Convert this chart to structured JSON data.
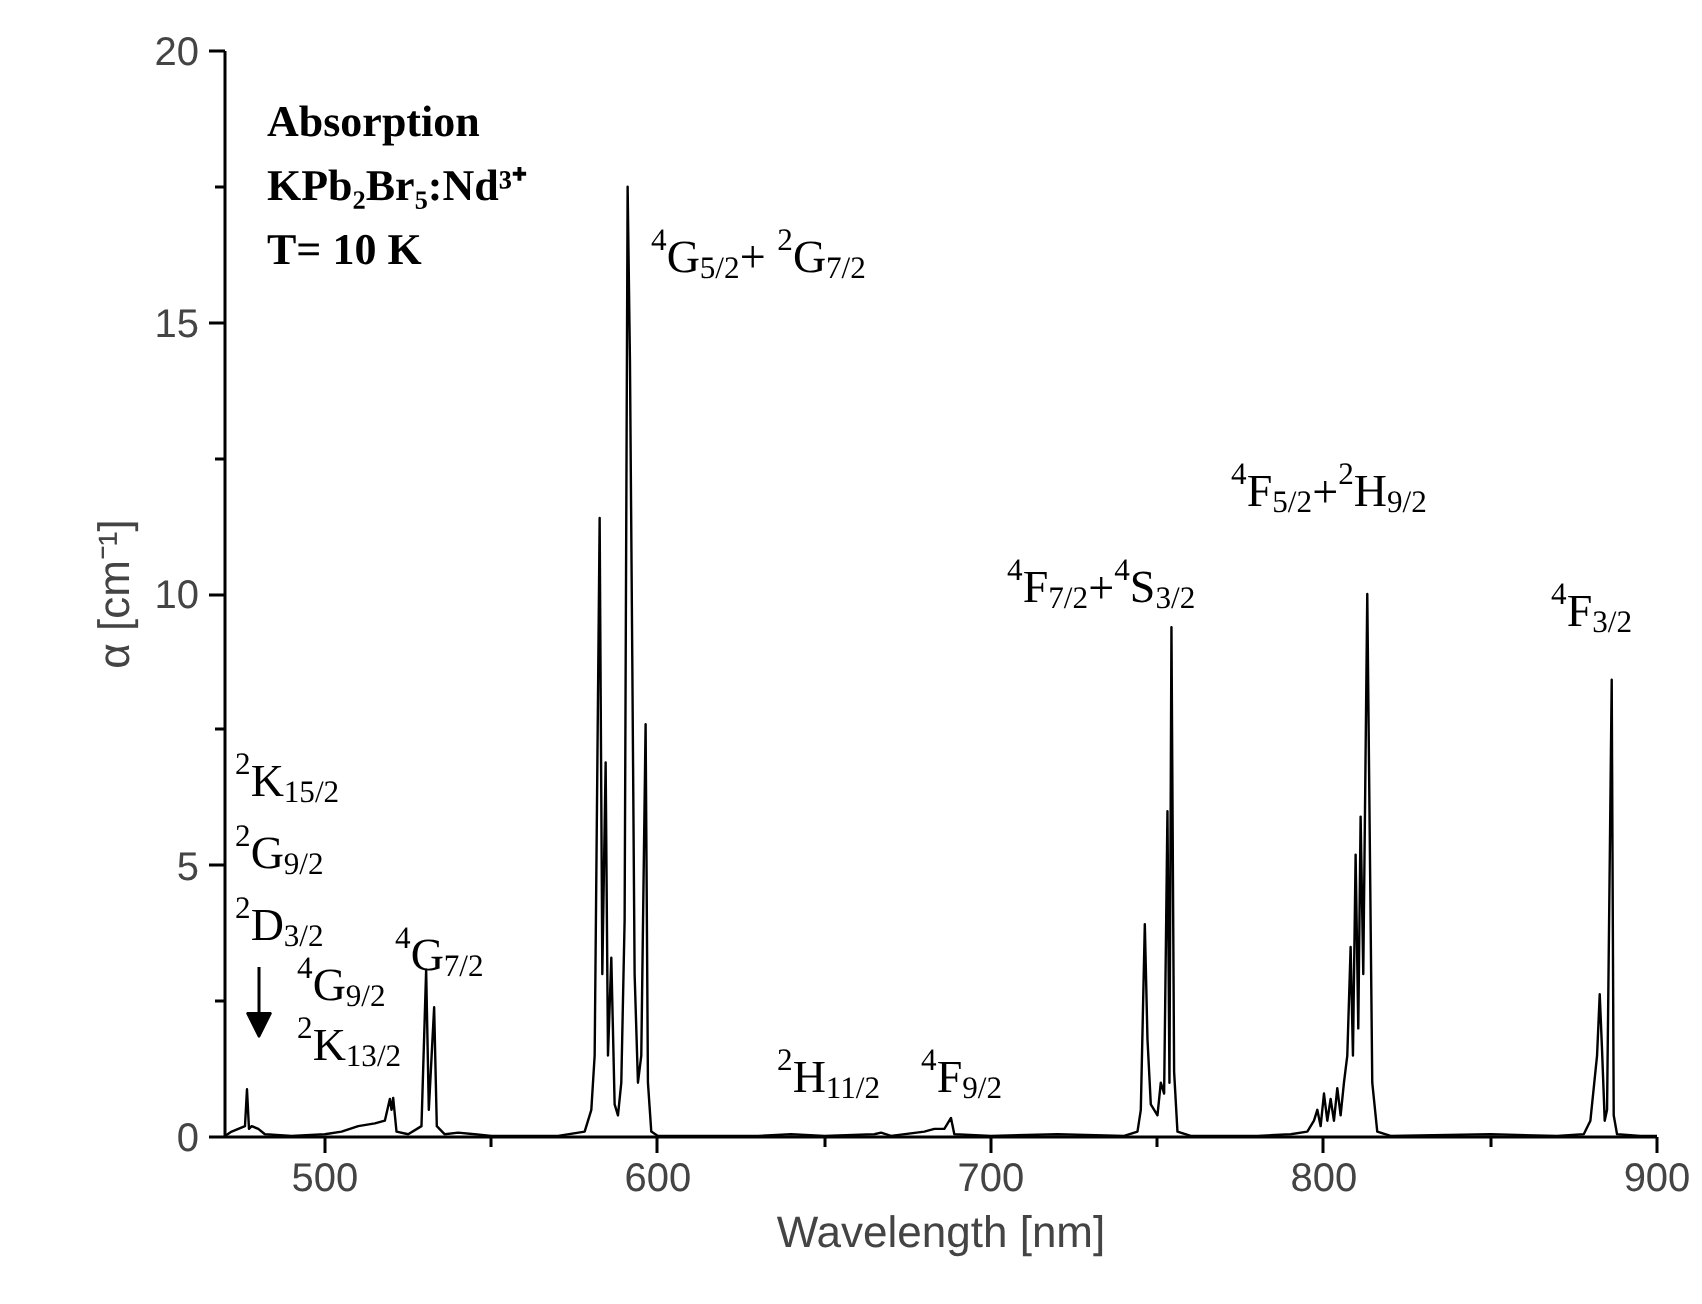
{
  "chart_data": {
    "type": "line",
    "xlabel": "Wavelength [nm]",
    "ylabel": "α [cm⁻¹]",
    "xlim": [
      470,
      900
    ],
    "ylim": [
      0,
      20
    ],
    "xticks": [
      500,
      {
        "value": 550,
        "label": null
      },
      600,
      {
        "value": 650,
        "label": null
      },
      700,
      {
        "value": 750,
        "label": null
      },
      800,
      {
        "value": 850,
        "label": null
      },
      900
    ],
    "yticks": [
      0,
      {
        "value": 2.5,
        "label": null
      },
      5,
      {
        "value": 7.5,
        "label": null
      },
      10,
      {
        "value": 12.5,
        "label": null
      },
      15,
      {
        "value": 17.5,
        "label": null
      },
      20
    ],
    "grid": false,
    "marker": "none",
    "line_style": "solid",
    "annotations": [
      "Absorption",
      "KPb₂Br₅:Nd³⁺",
      "T= 10 K",
      "$^{2}$K$_{15/2}$\n$^{2}$G$_{9/2}$\n$^{2}$D$_{3/2}$",
      "$^{4}$G$_{9/2}$\n$^{2}$K$_{13/2}$",
      "$^{4}$G$_{7/2}$",
      "$^{4}$G$_{5/2}$+ $^{2}$G$_{7/2}$",
      "$^{2}$H$_{11/2}$",
      "$^{4}$F$_{9/2}$",
      "$^{4}$F$_{7/2}$+$^{4}$S$_{3/2}$",
      "$^{4}$F$_{5/2}$+$^{2}$H$_{9/2}$",
      "$^{4}$F$_{3/2}$"
    ],
    "series": [
      {
        "color": "#000000",
        "x": [
          470,
          472,
          474,
          476,
          476.6,
          477.2,
          478,
          480,
          482,
          490,
          500,
          505,
          510,
          515,
          518,
          519.5,
          520,
          520.5,
          521.5,
          525,
          529,
          530.4,
          531.2,
          532.8,
          533.6,
          536,
          540,
          545,
          550,
          570,
          578,
          580,
          581,
          582.5,
          583.3,
          584.3,
          585,
          586,
          587,
          588,
          589,
          590,
          590.9,
          591.6,
          592.3,
          593,
          594,
          595,
          596.3,
          597,
          598,
          600,
          630,
          640,
          650,
          665,
          667,
          670,
          680,
          683,
          686,
          688,
          689,
          700,
          720,
          740,
          744,
          745,
          746.2,
          747,
          748,
          750,
          751,
          752,
          753,
          753.6,
          754.2,
          755,
          756,
          760,
          780,
          790,
          795,
          797,
          798,
          799,
          800,
          801,
          802,
          803,
          804,
          805,
          806,
          807,
          808,
          808.7,
          809.5,
          810.3,
          811,
          811.8,
          813,
          813.7,
          814.5,
          816,
          820,
          850,
          870,
          878,
          880,
          882,
          882.8,
          883.5,
          884.3,
          885,
          886.4,
          887,
          888,
          895,
          900
        ],
        "values": [
          0.02,
          0.1,
          0.15,
          0.2,
          0.88,
          0.15,
          0.2,
          0.15,
          0.05,
          0.02,
          0.05,
          0.1,
          0.2,
          0.25,
          0.3,
          0.7,
          0.5,
          0.72,
          0.1,
          0.05,
          0.2,
          3.08,
          0.5,
          2.39,
          0.2,
          0.05,
          0.08,
          0.05,
          0.02,
          0.02,
          0.1,
          0.5,
          1.5,
          11.4,
          3.0,
          6.9,
          1.5,
          3.3,
          0.6,
          0.4,
          1.0,
          4.0,
          17.5,
          14.3,
          8.8,
          3.0,
          1.0,
          1.5,
          7.6,
          1.0,
          0.1,
          0.02,
          0.02,
          0.05,
          0.02,
          0.05,
          0.08,
          0.02,
          0.1,
          0.15,
          0.15,
          0.35,
          0.05,
          0.02,
          0.05,
          0.02,
          0.1,
          0.5,
          3.92,
          1.8,
          0.6,
          0.4,
          1.0,
          0.8,
          6.0,
          1.0,
          9.39,
          1.2,
          0.1,
          0.02,
          0.02,
          0.05,
          0.1,
          0.3,
          0.5,
          0.2,
          0.8,
          0.3,
          0.7,
          0.3,
          0.9,
          0.4,
          1.0,
          1.5,
          3.5,
          1.5,
          5.2,
          2.0,
          5.9,
          3.0,
          10.0,
          5.8,
          1.0,
          0.1,
          0.02,
          0.05,
          0.02,
          0.05,
          0.3,
          1.5,
          2.63,
          1.6,
          0.3,
          0.5,
          8.42,
          0.4,
          0.05,
          0.02,
          0.02
        ]
      }
    ]
  }
}
